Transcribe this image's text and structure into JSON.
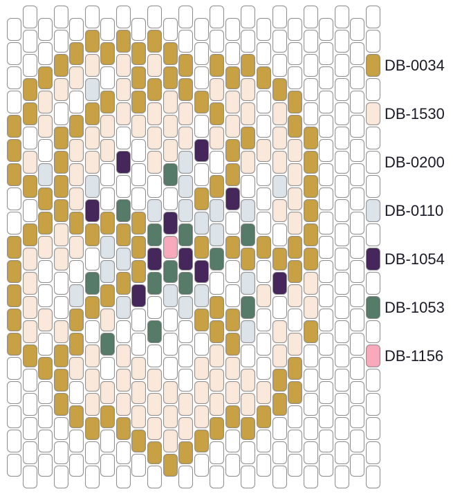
{
  "app": {
    "description": "peyote bead pattern chart with color legend"
  },
  "palette": {
    "W": "#ffffff",
    "A": "#c7a144",
    "B": "#fae8db",
    "D": "#dce3e9",
    "E": "#46275c",
    "F": "#567b68",
    "G": "#f8a9bc"
  },
  "grid": {
    "columns": [
      "WWWWAAAWWAAAAAWWWWW",
      "WWWAAWBAWABBBBAWWWWW",
      "WWABBWDAABWWBWAWWWW",
      "WWABWAAAABBWWBAAAWWW",
      "WABWABBBABWDAABWAWW",
      "WABDABBDEAWFAWBBBAWW",
      "WAWABBWWADDABFWBAWW",
      "WABBBWEWFADADWBBBAWW",
      "WAAABWWWAAAEWWBBBAW",
      "WABABBBWDFEFWFWBBBAW",
      "WAABBBFWEGFDWWWBBBA",
      "WWAABBDDDFEFDWWWBBAW",
      "WWWAWEWADAEDAWBBBAW",
      "WWABABWADDFWAABBBAWW",
      "WWABBAAEWAWWAABBAWW",
      "WWABBABWDFADFDWBBAWW",
      "WWAWWBWWWAWBWWWBAWW",
      "WWWABBBDBWAEWBBAAWWW",
      "WWWAABBBBAABWBAAWWW",
      "WWWWWAAAAAABBAWWWWWW",
      "WWWWWWWWWWWWWWWWWWW",
      "WWWWWWWWWWWWWWWWWWWW",
      "WWWWWWWWWWWWWWWWWWW"
    ]
  },
  "legend": {
    "beads": "WWAWBWWWDWEWFWGWWWWW",
    "labels": [
      {
        "text": "DB-0034",
        "row": 2,
        "color": "A"
      },
      {
        "text": "DB-1530",
        "row": 4,
        "color": "B"
      },
      {
        "text": "DB-0200",
        "row": 6,
        "color": "W"
      },
      {
        "text": "DB-0110",
        "row": 8,
        "color": "D"
      },
      {
        "text": "DB-1054",
        "row": 10,
        "color": "E"
      },
      {
        "text": "DB-1053",
        "row": 12,
        "color": "F"
      },
      {
        "text": "DB-1156",
        "row": 14,
        "color": "G"
      }
    ]
  }
}
